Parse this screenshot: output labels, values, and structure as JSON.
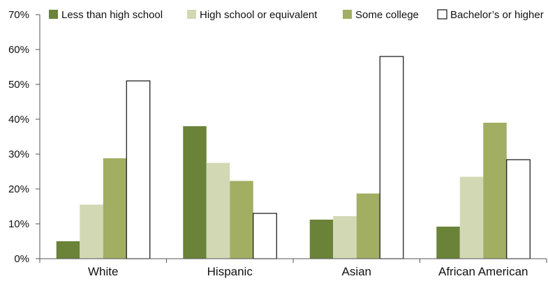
{
  "chart_data": {
    "type": "bar",
    "title": "",
    "xlabel": "",
    "ylabel": "",
    "ylim": [
      0,
      70
    ],
    "yticks": [
      0,
      10,
      20,
      30,
      40,
      50,
      60,
      70
    ],
    "ytick_format": "{v}%",
    "grid": false,
    "legend_position": "top",
    "categories": [
      "White",
      "Hispanic",
      "Asian",
      "African American"
    ],
    "series": [
      {
        "name": "Less than high school",
        "color": "#6a8339",
        "values": [
          5,
          38,
          11.2,
          9.2
        ]
      },
      {
        "name": "High school or equivalent",
        "color": "#d3d8b4",
        "values": [
          15.5,
          27.5,
          12.2,
          23.5
        ]
      },
      {
        "name": "Some college",
        "color": "#a2ae62",
        "values": [
          28.8,
          22.3,
          18.7,
          39
        ]
      },
      {
        "name": "Bachelor’s or higher",
        "color": "#ffffff",
        "values": [
          51,
          13,
          58,
          28.4
        ]
      }
    ]
  }
}
